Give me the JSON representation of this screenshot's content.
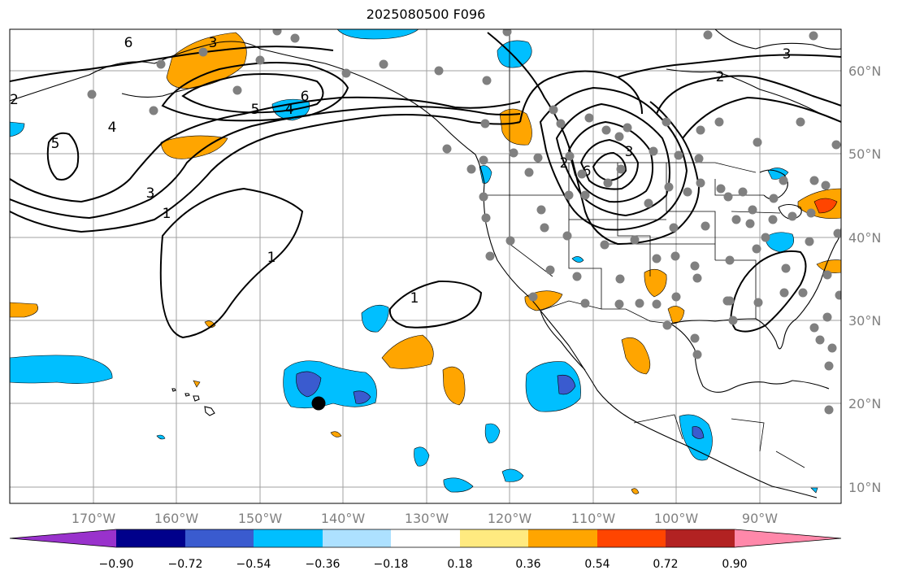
{
  "title": "2025080500 F096",
  "lon_labels": [
    "170°W",
    "160°W",
    "150°W",
    "140°W",
    "130°W",
    "120°W",
    "110°W",
    "100°W",
    "90°W"
  ],
  "lat_labels": [
    "60°N",
    "50°N",
    "40°N",
    "30°N",
    "20°N",
    "10°N"
  ],
  "colorbar": {
    "labels": [
      "−0.90",
      "−0.72",
      "−0.54",
      "−0.36",
      "−0.18",
      "0.18",
      "0.36",
      "0.54",
      "0.72",
      "0.90"
    ],
    "colors": [
      "#9932CC",
      "#00008B",
      "#3A5BCF",
      "#00BFFF",
      "#ADE1FF",
      "#FFFFFF",
      "#FFEA80",
      "#FFA500",
      "#FF4500",
      "#B22222",
      "#FF88AA"
    ]
  },
  "contour_labels": [
    "3",
    "3",
    "2",
    "1",
    "1",
    "1",
    "5",
    "6",
    "4",
    "3",
    "6",
    "2",
    "5",
    "4",
    "3",
    "2",
    "6"
  ],
  "station_color": "#808080",
  "marker_color": "#000000"
}
